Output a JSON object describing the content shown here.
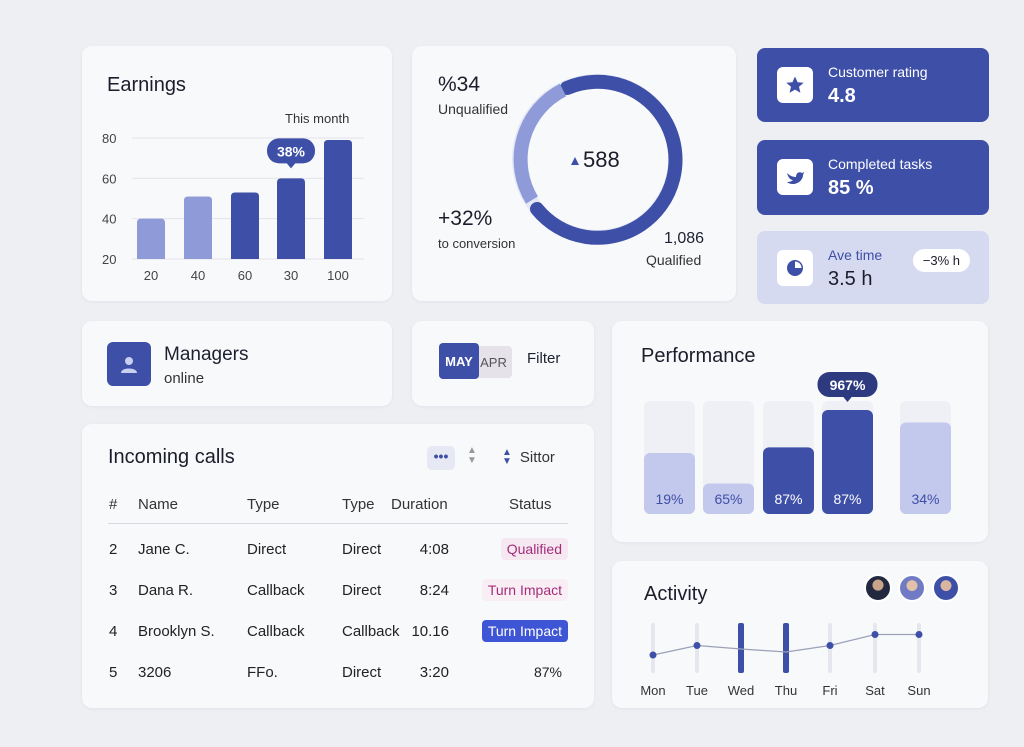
{
  "earnings": {
    "title": "Earnings",
    "subtitle": "This month",
    "highlight_label": "38%",
    "highlight_index": 3,
    "y_ticks": [
      80,
      60,
      40,
      20
    ],
    "ylim": [
      20,
      80
    ],
    "bars": [
      {
        "label": "20",
        "value": 40,
        "color": "#8f9bd8"
      },
      {
        "label": "40",
        "value": 51,
        "color": "#8f9bd8"
      },
      {
        "label": "60",
        "value": 53,
        "color": "#3e4fa7"
      },
      {
        "label": "30",
        "value": 60,
        "color": "#3e4fa7"
      },
      {
        "label": "100",
        "value": 79,
        "color": "#3e4fa7"
      }
    ]
  },
  "conversion": {
    "unqualified_pct": "%34",
    "unqualified_label": "Unqualified",
    "center_value": "588",
    "change": "+32%",
    "change_label": "to conversion",
    "qualified_value": "1,086",
    "qualified_label": "Qualified"
  },
  "stats": {
    "rating": {
      "label": "Customer rating",
      "value": "4.8",
      "icon": "star-icon"
    },
    "tasks": {
      "label": "Completed tasks",
      "value": "85 %",
      "icon": "bird-icon"
    },
    "time": {
      "label": "Ave time",
      "value": "3.5 h",
      "delta": "−3% h",
      "icon": "pie-icon"
    }
  },
  "managers": {
    "title": "Managers",
    "status": "online"
  },
  "filter": {
    "chip_primary": "MAY",
    "chip_secondary": "APR",
    "label": "Filter"
  },
  "calls": {
    "title": "Incoming calls",
    "more_label": "•••",
    "sort_label": "Sittor",
    "headers": [
      "#",
      "Name",
      "Type",
      "Type",
      "Duration",
      "Status"
    ],
    "rows": [
      {
        "num": "2",
        "name": "Jane C.",
        "type1": "Direct",
        "type2": "Direct",
        "duration": "4:08",
        "status": "Qualified",
        "status_style": "qualified"
      },
      {
        "num": "3",
        "name": "Dana R.",
        "type1": "Callback",
        "type2": "Direct",
        "duration": "8:24",
        "status": "Turn Impact",
        "status_style": "pink"
      },
      {
        "num": "4",
        "name": "Brooklyn S.",
        "type1": "Callback",
        "type2": "Callback",
        "duration": "10.16",
        "status": "Turn Impact",
        "status_style": "blue"
      },
      {
        "num": "5",
        "name": "3206",
        "type1": "FFo.",
        "type2": "Direct",
        "duration": "3:20",
        "status": "87%",
        "status_style": "plain"
      }
    ]
  },
  "performance": {
    "title": "Performance",
    "highlight_label": "967%",
    "highlight_index": 3,
    "bars": [
      {
        "label": "19%",
        "value": 0.54,
        "color": "#c3c9ec",
        "text_color": "#3e4fa7"
      },
      {
        "label": "65%",
        "value": 0.27,
        "color": "#c3c9ec",
        "text_color": "#3e4fa7"
      },
      {
        "label": "87%",
        "value": 0.59,
        "color": "#3e4fa7",
        "text_color": "#ffffff"
      },
      {
        "label": "87%",
        "value": 0.92,
        "color": "#3e4fa7",
        "text_color": "#ffffff"
      },
      {
        "label": "34%",
        "value": 0.81,
        "color": "#c3c9ec",
        "text_color": "#3e4fa7"
      }
    ]
  },
  "activity": {
    "title": "Activity",
    "days": [
      "Mon",
      "Tue",
      "Wed",
      "Thu",
      "Fri",
      "Sat",
      "Sun"
    ],
    "values": [
      0.36,
      0.55,
      0.48,
      0.42,
      0.55,
      0.77,
      0.77
    ],
    "emphasis": [
      false,
      false,
      true,
      true,
      false,
      false,
      false
    ]
  },
  "colors": {
    "accent": "#3e4fa7",
    "accent_light": "#8f9bd8",
    "pale": "#d5daf1",
    "pink": "#a42d7a"
  }
}
